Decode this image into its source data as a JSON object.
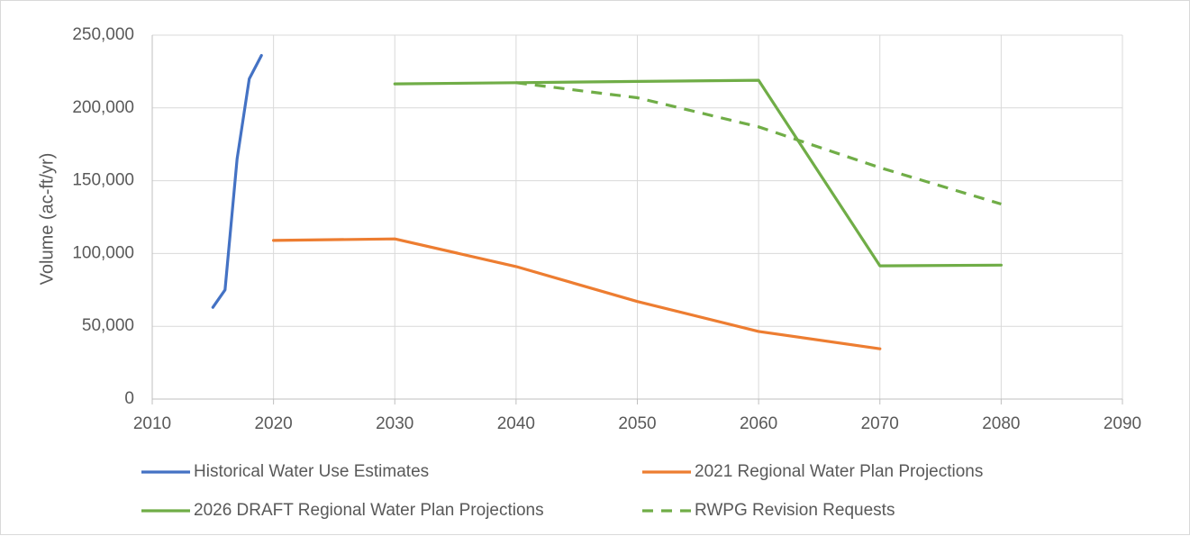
{
  "chart_data": {
    "type": "line",
    "title": "",
    "xlabel": "",
    "ylabel": "Volume (ac-ft/yr)",
    "xlim": [
      2010,
      2090
    ],
    "ylim": [
      0,
      250000
    ],
    "x_ticks": [
      2010,
      2020,
      2030,
      2040,
      2050,
      2060,
      2070,
      2080,
      2090
    ],
    "x_tick_labels": [
      "2010",
      "2020",
      "2030",
      "2040",
      "2050",
      "2060",
      "2070",
      "2080",
      "2090"
    ],
    "y_ticks": [
      0,
      50000,
      100000,
      150000,
      200000,
      250000
    ],
    "y_tick_labels": [
      "0",
      "50,000",
      "100,000",
      "150,000",
      "200,000",
      "250,000"
    ],
    "grid": true,
    "legend_position": "bottom",
    "series": [
      {
        "name": "Historical Water Use Estimates",
        "color": "#4472C4",
        "dashed": false,
        "points": [
          [
            2015,
            63000
          ],
          [
            2016,
            75000
          ],
          [
            2017,
            165000
          ],
          [
            2018,
            220000
          ],
          [
            2019,
            236000
          ]
        ]
      },
      {
        "name": "2021 Regional Water Plan Projections",
        "color": "#ED7D31",
        "dashed": false,
        "points": [
          [
            2020,
            109000
          ],
          [
            2030,
            110000
          ],
          [
            2040,
            91000
          ],
          [
            2050,
            67000
          ],
          [
            2060,
            46500
          ],
          [
            2070,
            34500
          ]
        ]
      },
      {
        "name": "2026 DRAFT Regional Water Plan Projections",
        "color": "#70AD47",
        "dashed": false,
        "points": [
          [
            2030,
            216500
          ],
          [
            2040,
            217300
          ],
          [
            2050,
            218200
          ],
          [
            2060,
            219000
          ],
          [
            2070,
            91500
          ],
          [
            2080,
            92000
          ]
        ]
      },
      {
        "name": "RWPG Revision Requests",
        "color": "#70AD47",
        "dashed": true,
        "points": [
          [
            2040,
            217300
          ],
          [
            2050,
            207000
          ],
          [
            2060,
            187000
          ],
          [
            2070,
            159000
          ],
          [
            2080,
            134000
          ]
        ]
      }
    ]
  }
}
